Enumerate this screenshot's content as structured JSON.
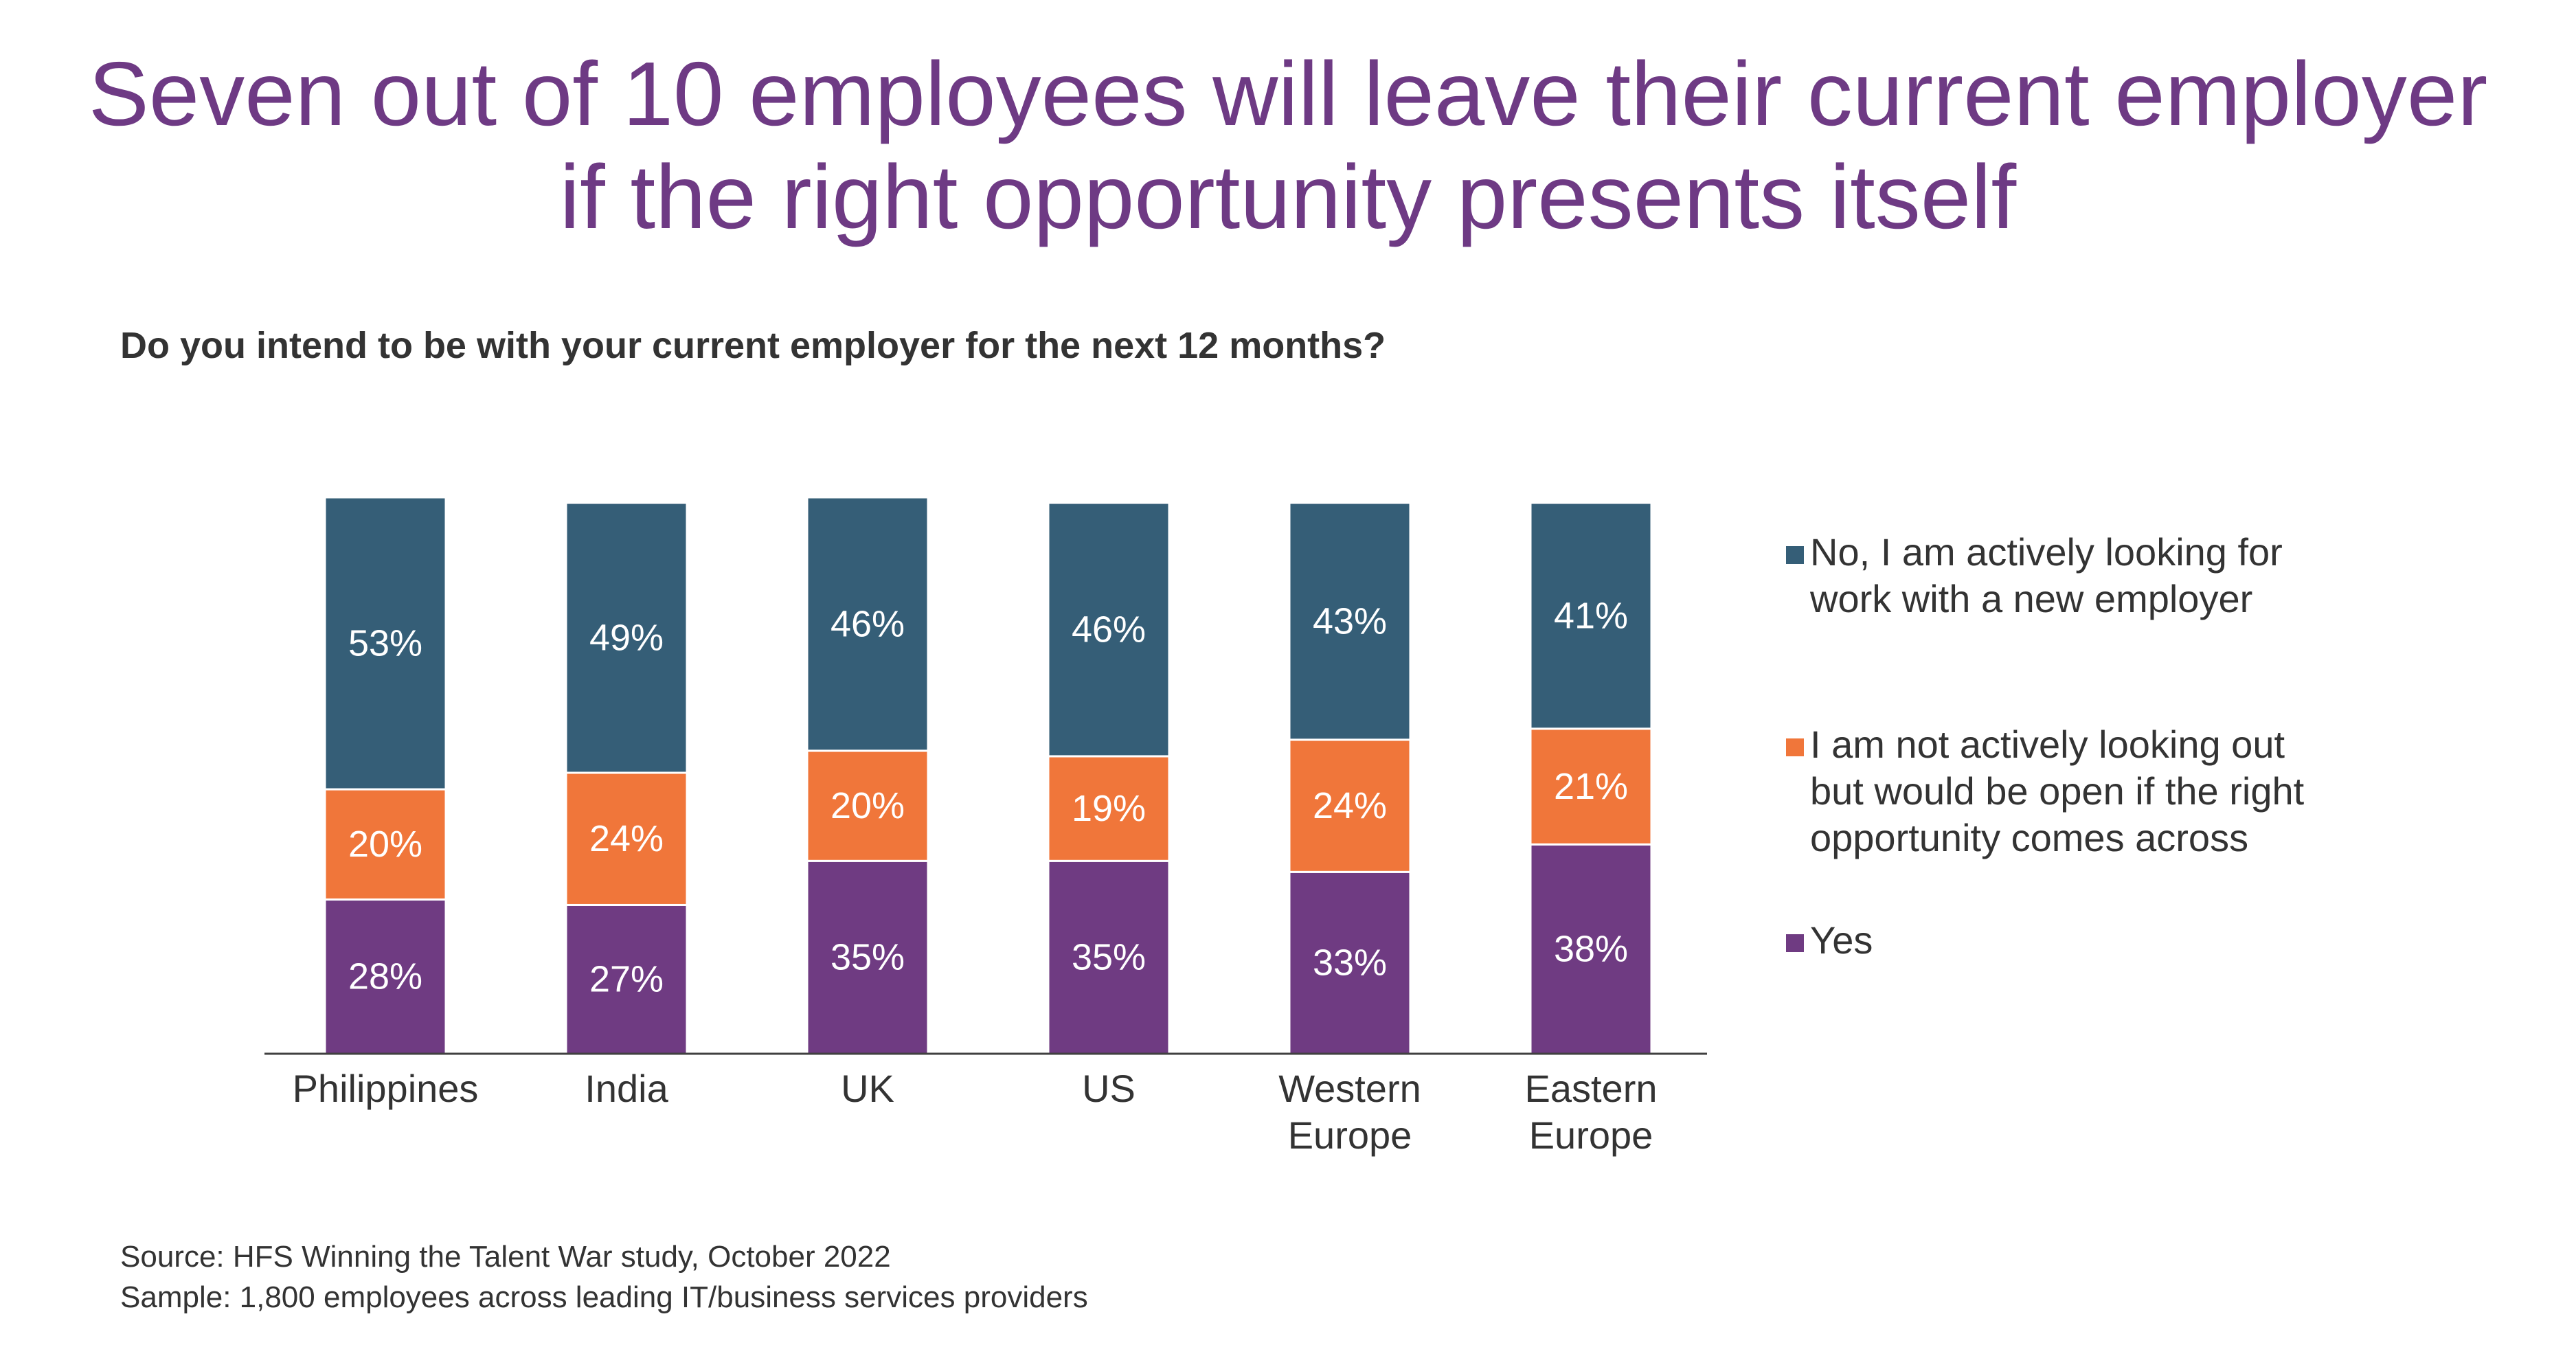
{
  "headline": {
    "line1": "Seven out of 10 employees will leave their current employer",
    "line2": "if the right opportunity presents itself"
  },
  "question": "Do you intend to be with your current employer for the next 12 months?",
  "footnotes": {
    "source": "Source: HFS Winning the Talent War study, October 2022",
    "sample": "Sample: 1,800 employees across leading IT/business services providers"
  },
  "chart_data": {
    "type": "bar",
    "stacked": true,
    "categories": [
      "Philippines",
      "India",
      "UK",
      "US",
      "Western Europe",
      "Eastern Europe"
    ],
    "category_lines": [
      [
        "Philippines"
      ],
      [
        "India"
      ],
      [
        "UK"
      ],
      [
        "US"
      ],
      [
        "Western",
        "Europe"
      ],
      [
        "Eastern",
        "Europe"
      ]
    ],
    "series": [
      {
        "name": "Yes",
        "color": "#6f3b82",
        "values": [
          28,
          27,
          35,
          35,
          33,
          38
        ],
        "labels": [
          "28%",
          "27%",
          "35%",
          "35%",
          "33%",
          "38%"
        ]
      },
      {
        "name": "I am not actively looking out but would be open if the right opportunity comes across",
        "color": "#f0763a",
        "values": [
          20,
          24,
          20,
          19,
          24,
          21
        ],
        "labels": [
          "20%",
          "24%",
          "20%",
          "19%",
          "24%",
          "21%"
        ]
      },
      {
        "name": "No, I am actively looking for work with a new employer",
        "color": "#355e77",
        "values": [
          53,
          49,
          46,
          46,
          43,
          41
        ],
        "labels": [
          "53%",
          "49%",
          "46%",
          "46%",
          "43%",
          "41%"
        ]
      }
    ],
    "ylim": [
      0,
      100
    ],
    "grid": false,
    "legend_position": "right",
    "legend": [
      {
        "color": "#355e77",
        "lines": [
          "No, I am actively looking for",
          "work with a new employer"
        ]
      },
      {
        "color": "#f0763a",
        "lines": [
          "I am not actively looking out",
          "but would be open if the right",
          "opportunity comes across"
        ]
      },
      {
        "color": "#6f3b82",
        "lines": [
          "Yes"
        ]
      }
    ]
  }
}
